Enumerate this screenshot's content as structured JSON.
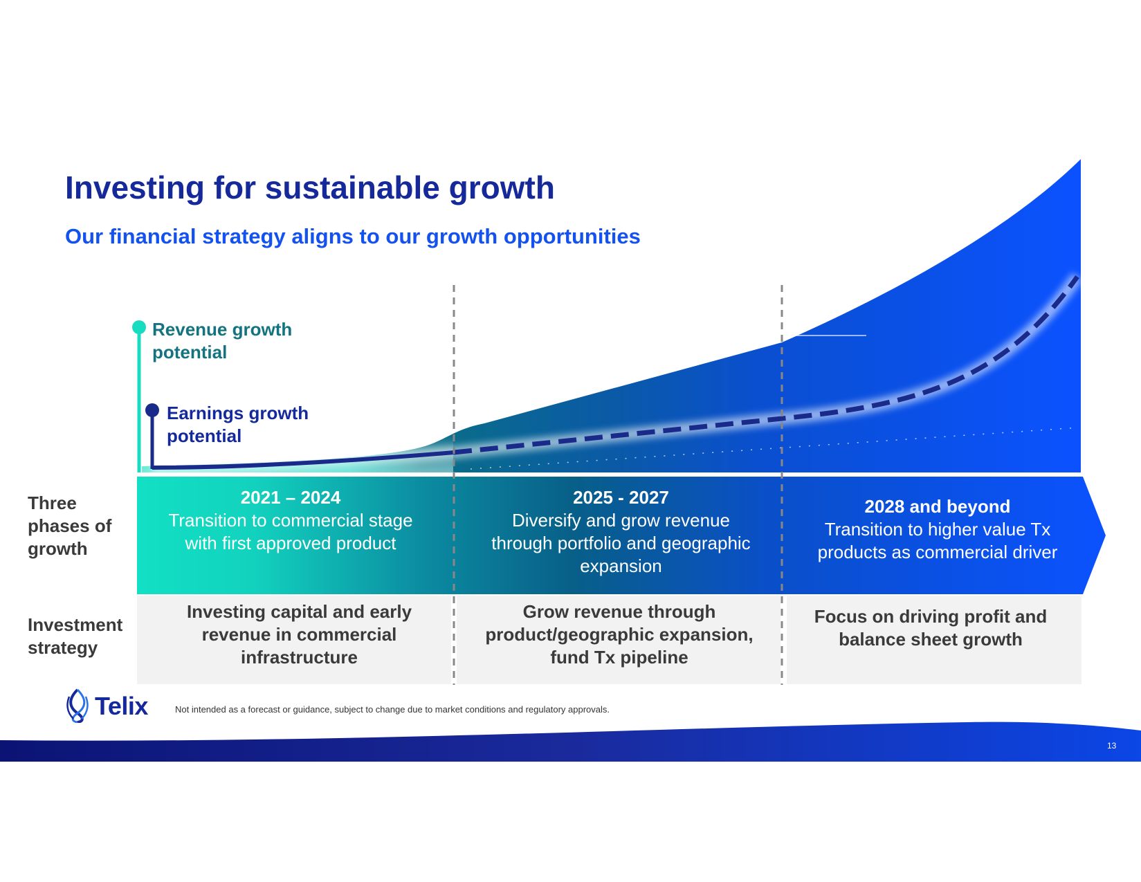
{
  "slide": {
    "title": "Investing for sustainable growth",
    "subtitle": "Our financial strategy aligns to our growth opportunities",
    "page_number": "13",
    "disclaimer": "Not intended as a forecast or guidance, subject to change due to market conditions and regulatory approvals.",
    "logo_text": "Telix"
  },
  "legend": {
    "revenue": "Revenue growth potential",
    "earnings": "Earnings growth potential"
  },
  "row_labels": {
    "phases": "Three phases of growth",
    "investment": "Investment strategy"
  },
  "phases": [
    {
      "years": "2021 – 2024",
      "description": "Transition to commercial stage with first approved product"
    },
    {
      "years": "2025 - 2027",
      "description": "Diversify and grow revenue through portfolio and geographic expansion"
    },
    {
      "years": "2028 and beyond",
      "description": "Transition to higher value Tx products as commercial driver"
    }
  ],
  "investment": [
    "Investing capital and early revenue in commercial infrastructure",
    "Grow revenue through product/geographic expansion, fund Tx pipeline",
    "Focus on driving profit and balance sheet growth"
  ],
  "colors": {
    "title": "#16299a",
    "subtitle": "#1452f0",
    "revenue_teal": "#17dcc0",
    "earnings_navy": "#1a2a8a",
    "bright_blue": "#0b52ff",
    "investment_bg": "#f2f2f2"
  }
}
